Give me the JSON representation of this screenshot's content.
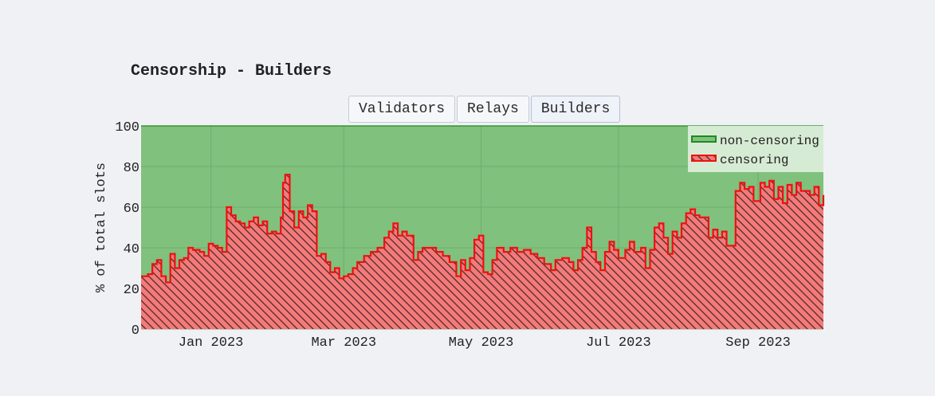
{
  "title": "Censorship - Builders",
  "buttons": [
    {
      "label": "Validators",
      "active": false
    },
    {
      "label": "Relays",
      "active": false
    },
    {
      "label": "Builders",
      "active": true
    }
  ],
  "colors": {
    "non_censoring_fill": "#80c17d",
    "non_censoring_line": "#1f8a1f",
    "censoring_fill": "#f47a7a",
    "censoring_line": "#ee1111",
    "grid": "#6aa86a"
  },
  "chart_data": {
    "type": "area",
    "stacked": true,
    "step": true,
    "ylabel": "% of total slots",
    "ylim": [
      0,
      100
    ],
    "yticks": [
      0,
      20,
      40,
      60,
      80,
      100
    ],
    "xlim": [
      "2022-12-01",
      "2023-09-30"
    ],
    "xticks": [
      {
        "date": "2023-01-01",
        "label": "Jan 2023"
      },
      {
        "date": "2023-03-01",
        "label": "Mar 2023"
      },
      {
        "date": "2023-05-01",
        "label": "May 2023"
      },
      {
        "date": "2023-07-01",
        "label": "Jul 2023"
      },
      {
        "date": "2023-09-01",
        "label": "Sep 2023"
      }
    ],
    "legend": {
      "position": "top-right"
    },
    "series": [
      {
        "name": "non-censoring",
        "complement_to": 100
      },
      {
        "name": "censoring",
        "points": [
          [
            "2022-12-01",
            26
          ],
          [
            "2022-12-04",
            27
          ],
          [
            "2022-12-06",
            32
          ],
          [
            "2022-12-08",
            34
          ],
          [
            "2022-12-10",
            26
          ],
          [
            "2022-12-12",
            23
          ],
          [
            "2022-12-14",
            37
          ],
          [
            "2022-12-16",
            30
          ],
          [
            "2022-12-18",
            34
          ],
          [
            "2022-12-20",
            35
          ],
          [
            "2022-12-22",
            40
          ],
          [
            "2022-12-24",
            39
          ],
          [
            "2022-12-27",
            38
          ],
          [
            "2022-12-29",
            36
          ],
          [
            "2022-12-31",
            42
          ],
          [
            "2023-01-02",
            41
          ],
          [
            "2023-01-04",
            40
          ],
          [
            "2023-01-06",
            38
          ],
          [
            "2023-01-08",
            60
          ],
          [
            "2023-01-10",
            56
          ],
          [
            "2023-01-12",
            53
          ],
          [
            "2023-01-14",
            52
          ],
          [
            "2023-01-16",
            50
          ],
          [
            "2023-01-18",
            53
          ],
          [
            "2023-01-20",
            55
          ],
          [
            "2023-01-22",
            51
          ],
          [
            "2023-01-24",
            53
          ],
          [
            "2023-01-26",
            47
          ],
          [
            "2023-01-28",
            48
          ],
          [
            "2023-01-30",
            47
          ],
          [
            "2023-02-01",
            55
          ],
          [
            "2023-02-02",
            72
          ],
          [
            "2023-02-03",
            76
          ],
          [
            "2023-02-05",
            58
          ],
          [
            "2023-02-07",
            50
          ],
          [
            "2023-02-09",
            58
          ],
          [
            "2023-02-11",
            55
          ],
          [
            "2023-02-13",
            61
          ],
          [
            "2023-02-15",
            58
          ],
          [
            "2023-02-17",
            36
          ],
          [
            "2023-02-19",
            37
          ],
          [
            "2023-02-21",
            33
          ],
          [
            "2023-02-23",
            28
          ],
          [
            "2023-02-25",
            30
          ],
          [
            "2023-02-27",
            25
          ],
          [
            "2023-03-01",
            26
          ],
          [
            "2023-03-03",
            27
          ],
          [
            "2023-03-05",
            30
          ],
          [
            "2023-03-07",
            33
          ],
          [
            "2023-03-10",
            36
          ],
          [
            "2023-03-13",
            38
          ],
          [
            "2023-03-16",
            40
          ],
          [
            "2023-03-19",
            45
          ],
          [
            "2023-03-21",
            48
          ],
          [
            "2023-03-23",
            52
          ],
          [
            "2023-03-25",
            46
          ],
          [
            "2023-03-27",
            48
          ],
          [
            "2023-03-29",
            46
          ],
          [
            "2023-04-01",
            34
          ],
          [
            "2023-04-03",
            38
          ],
          [
            "2023-04-05",
            40
          ],
          [
            "2023-04-08",
            40
          ],
          [
            "2023-04-11",
            38
          ],
          [
            "2023-04-14",
            36
          ],
          [
            "2023-04-17",
            33
          ],
          [
            "2023-04-20",
            26
          ],
          [
            "2023-04-22",
            34
          ],
          [
            "2023-04-24",
            29
          ],
          [
            "2023-04-26",
            35
          ],
          [
            "2023-04-28",
            44
          ],
          [
            "2023-04-30",
            46
          ],
          [
            "2023-05-02",
            28
          ],
          [
            "2023-05-04",
            27
          ],
          [
            "2023-05-06",
            34
          ],
          [
            "2023-05-08",
            40
          ],
          [
            "2023-05-11",
            38
          ],
          [
            "2023-05-14",
            40
          ],
          [
            "2023-05-17",
            38
          ],
          [
            "2023-05-20",
            39
          ],
          [
            "2023-05-23",
            37
          ],
          [
            "2023-05-26",
            35
          ],
          [
            "2023-05-29",
            32
          ],
          [
            "2023-06-01",
            29
          ],
          [
            "2023-06-03",
            34
          ],
          [
            "2023-06-06",
            35
          ],
          [
            "2023-06-09",
            33
          ],
          [
            "2023-06-11",
            29
          ],
          [
            "2023-06-13",
            34
          ],
          [
            "2023-06-15",
            40
          ],
          [
            "2023-06-17",
            50
          ],
          [
            "2023-06-19",
            38
          ],
          [
            "2023-06-21",
            33
          ],
          [
            "2023-06-23",
            29
          ],
          [
            "2023-06-25",
            38
          ],
          [
            "2023-06-27",
            43
          ],
          [
            "2023-06-29",
            39
          ],
          [
            "2023-07-01",
            35
          ],
          [
            "2023-07-04",
            39
          ],
          [
            "2023-07-06",
            43
          ],
          [
            "2023-07-08",
            38
          ],
          [
            "2023-07-11",
            40
          ],
          [
            "2023-07-13",
            30
          ],
          [
            "2023-07-15",
            39
          ],
          [
            "2023-07-17",
            50
          ],
          [
            "2023-07-19",
            52
          ],
          [
            "2023-07-21",
            45
          ],
          [
            "2023-07-23",
            37
          ],
          [
            "2023-07-25",
            48
          ],
          [
            "2023-07-27",
            45
          ],
          [
            "2023-07-29",
            52
          ],
          [
            "2023-07-31",
            57
          ],
          [
            "2023-08-02",
            59
          ],
          [
            "2023-08-04",
            56
          ],
          [
            "2023-08-06",
            55
          ],
          [
            "2023-08-08",
            55
          ],
          [
            "2023-08-10",
            45
          ],
          [
            "2023-08-12",
            49
          ],
          [
            "2023-08-14",
            45
          ],
          [
            "2023-08-16",
            48
          ],
          [
            "2023-08-18",
            41
          ],
          [
            "2023-08-20",
            41
          ],
          [
            "2023-08-22",
            68
          ],
          [
            "2023-08-24",
            72
          ],
          [
            "2023-08-26",
            69
          ],
          [
            "2023-08-28",
            70
          ],
          [
            "2023-08-30",
            63
          ],
          [
            "2023-09-02",
            72
          ],
          [
            "2023-09-04",
            70
          ],
          [
            "2023-09-06",
            73
          ],
          [
            "2023-09-08",
            64
          ],
          [
            "2023-09-10",
            70
          ],
          [
            "2023-09-12",
            62
          ],
          [
            "2023-09-14",
            71
          ],
          [
            "2023-09-16",
            66
          ],
          [
            "2023-09-18",
            72
          ],
          [
            "2023-09-20",
            68
          ],
          [
            "2023-09-22",
            68
          ],
          [
            "2023-09-24",
            66
          ],
          [
            "2023-09-26",
            70
          ],
          [
            "2023-09-28",
            61
          ],
          [
            "2023-09-30",
            66
          ]
        ]
      }
    ]
  }
}
